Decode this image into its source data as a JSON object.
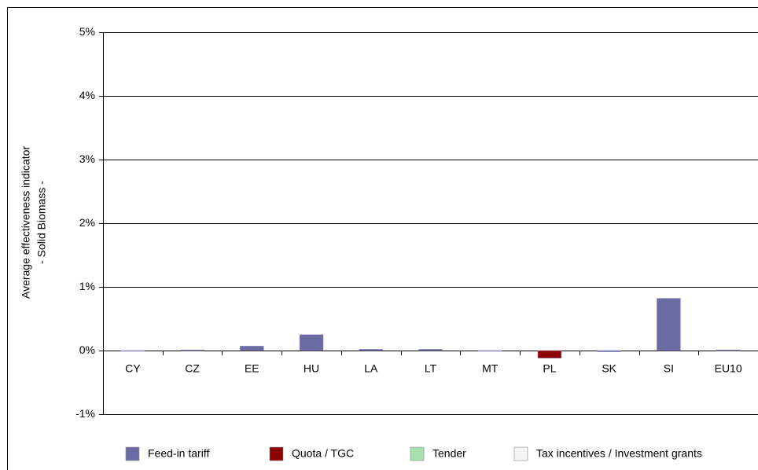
{
  "chart_data": {
    "type": "bar",
    "y_label": [
      "Average effectiveness indicator",
      "- Solid Biomass -"
    ],
    "categories": [
      "CY",
      "CZ",
      "EE",
      "HU",
      "LA",
      "LT",
      "MT",
      "PL",
      "SK",
      "SI",
      "EU10"
    ],
    "series": [
      {
        "name": "Feed-in tariff",
        "color": "#6b6ba3",
        "values": [
          0,
          0.01,
          0.07,
          0.25,
          0.02,
          0.02,
          0,
          null,
          -0.02,
          0.82,
          0.01
        ]
      },
      {
        "name": "Quota / TGC",
        "color": "#8b0000",
        "values": [
          null,
          null,
          null,
          null,
          null,
          null,
          null,
          -0.12,
          null,
          null,
          null
        ]
      },
      {
        "name": "Tender",
        "color": "#a8e0b0",
        "values": [
          null,
          null,
          null,
          null,
          null,
          null,
          null,
          null,
          null,
          null,
          null
        ]
      },
      {
        "name": "Tax incentives / Investment grants",
        "color": "#f4f4f4",
        "values": [
          null,
          null,
          null,
          null,
          null,
          null,
          null,
          null,
          null,
          null,
          null
        ]
      }
    ],
    "ylim": [
      -1,
      5
    ],
    "yticks": [
      {
        "value": -1,
        "label": "-1%"
      },
      {
        "value": 0,
        "label": "0%"
      },
      {
        "value": 1,
        "label": "1%"
      },
      {
        "value": 2,
        "label": "2%"
      },
      {
        "value": 3,
        "label": "3%"
      },
      {
        "value": 4,
        "label": "4%"
      },
      {
        "value": 5,
        "label": "5%"
      }
    ],
    "grid": true
  }
}
